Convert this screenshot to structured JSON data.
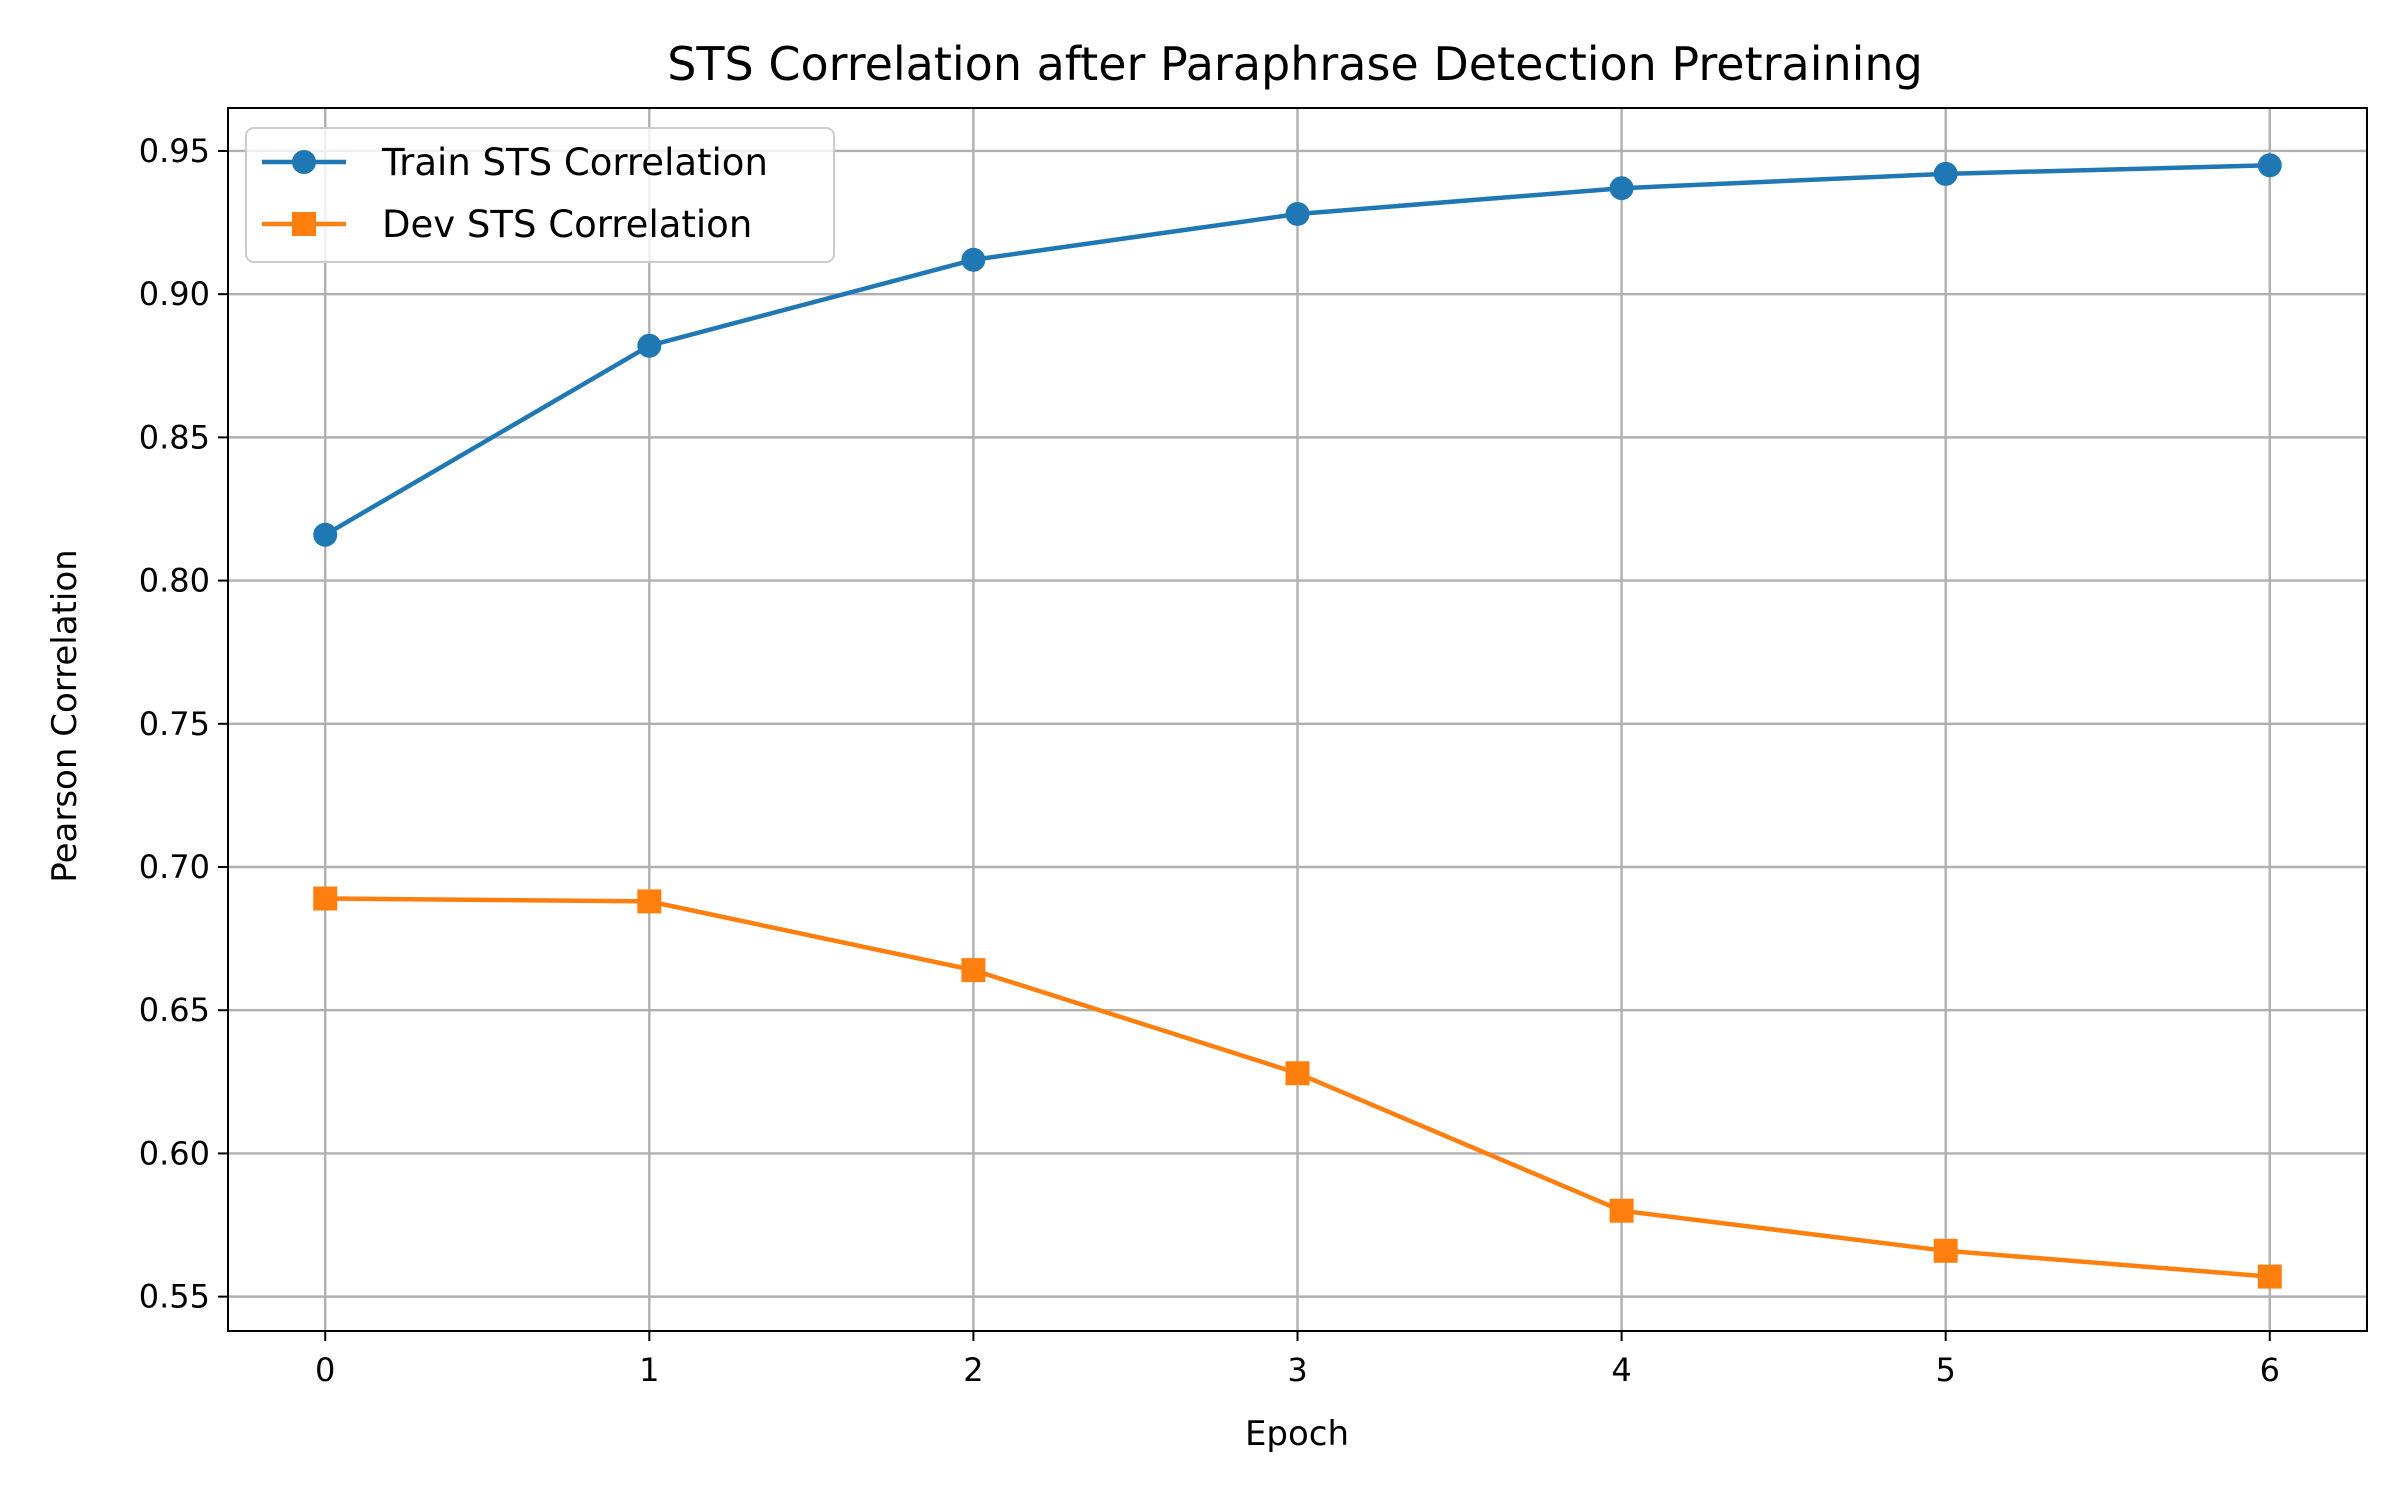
{
  "chart_data": {
    "type": "line",
    "title": "STS Correlation after Paraphrase Detection Pretraining",
    "xlabel": "Epoch",
    "ylabel": "Pearson Correlation",
    "x": [
      0,
      1,
      2,
      3,
      4,
      5,
      6
    ],
    "xlim": [
      -0.3,
      6.3
    ],
    "ylim": [
      0.538,
      0.965
    ],
    "xticks": [
      "0",
      "1",
      "2",
      "3",
      "4",
      "5",
      "6"
    ],
    "yticks": [
      "0.55",
      "0.60",
      "0.65",
      "0.70",
      "0.75",
      "0.80",
      "0.85",
      "0.90",
      "0.95"
    ],
    "grid": true,
    "legend_position": "top-left",
    "series": [
      {
        "name": "Train STS Correlation",
        "color": "#1f77b4",
        "marker": "circle",
        "values": [
          0.816,
          0.882,
          0.912,
          0.928,
          0.937,
          0.942,
          0.945
        ]
      },
      {
        "name": "Dev STS Correlation",
        "color": "#ff7f0e",
        "marker": "square",
        "values": [
          0.689,
          0.688,
          0.664,
          0.628,
          0.58,
          0.566,
          0.557
        ]
      }
    ]
  }
}
